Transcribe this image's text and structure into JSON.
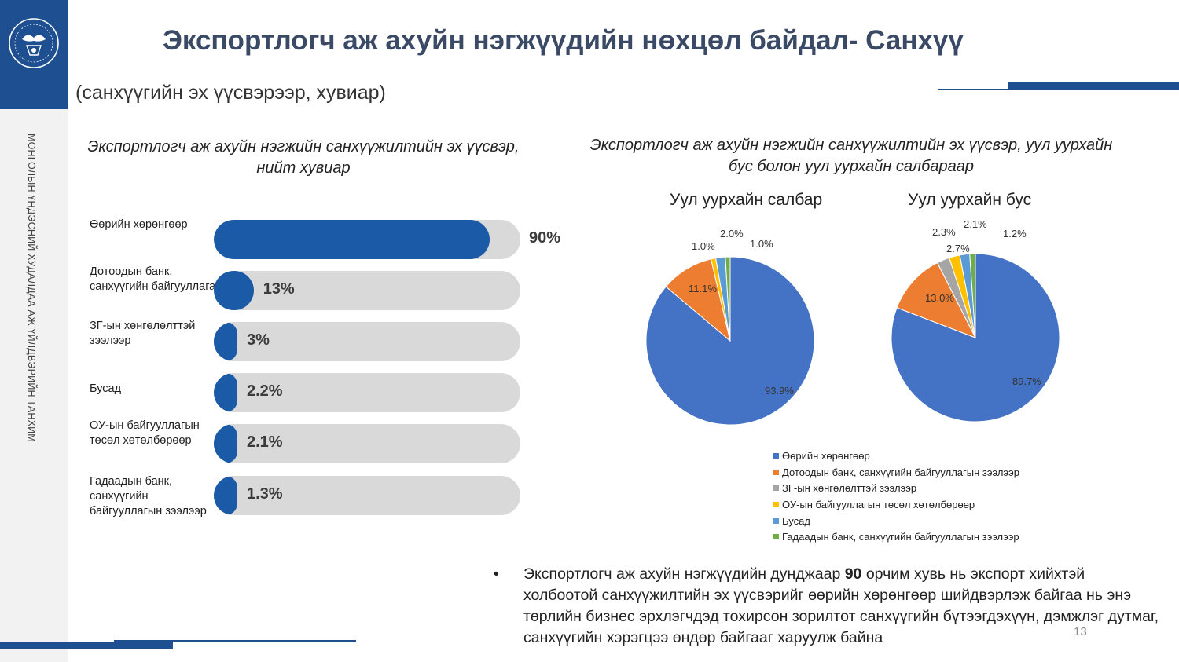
{
  "header": {
    "title": "Экспортлогч аж ахуйн нэгжүүдийн нөхцөл байдал- Санхүү",
    "subtitle": "(санхүүгийн эх үүсвэрээр, хувиар)",
    "side_label": "МОНГОЛЫН ҮНДЭСНИЙ ХУДАЛДАА АЖ ҮЙЛДВЭРИЙН ТАНХИМ"
  },
  "colors": {
    "brand": "#1d4f91",
    "bar_fill": "#1a5aa6",
    "bar_track": "#d9d9d9",
    "pie": [
      "#4472c4",
      "#ed7d31",
      "#a5a5a5",
      "#ffc000",
      "#5b9bd5",
      "#70ad47"
    ]
  },
  "chart_data": [
    {
      "type": "bar",
      "title": "Экспортлогч аж ахуйн нэгжийн санхүүжилтийн эх үүсвэр, нийт хувиар",
      "categories": [
        "Өөрийн хөрөнгөөр",
        "Дотоодын банк, санхүүгийн байгууллага",
        "ЗГ-ын хөнгөлөлттэй зээлээр",
        "Бусад",
        "ОУ-ын байгууллагын төсөл хөтөлбөрөөр",
        "Гадаадын банк, санхүүгийн байгууллагын зээлээр"
      ],
      "values": [
        90,
        13,
        3,
        2.2,
        2.1,
        1.3
      ],
      "labels": [
        "90%",
        "13%",
        "3%",
        "2.2%",
        "2.1%",
        "1.3%"
      ],
      "ylim": [
        0,
        100
      ]
    },
    {
      "type": "pie",
      "title": "Экспортлогч аж ахуйн нэгжийн санхүүжилтийн эх үүсвэр, уул уурхайн бус болон уул уурхайн салбараар",
      "charts": [
        {
          "name": "Уул уурхайн салбар",
          "values": [
            93.9,
            11.1,
            0,
            1.0,
            2.0,
            1.0
          ],
          "labels": [
            "93.9%",
            "11.1%",
            "",
            "1.0%",
            "2.0%",
            "1.0%"
          ]
        },
        {
          "name": "Уул уурхайн бус",
          "values": [
            89.7,
            13.0,
            2.7,
            2.3,
            2.1,
            1.2
          ],
          "labels": [
            "89.7%",
            "13.0%",
            "2.7%",
            "2.3%",
            "2.1%",
            "1.2%"
          ]
        }
      ],
      "legend": [
        "Өөрийн хөрөнгөөр",
        "Дотоодын банк, санхүүгийн байгууллагын зээлээр",
        "ЗГ-ын хөнгөлөлттэй зээлээр",
        "ОУ-ын байгууллагын төсөл хөтөлбөрөөр",
        "Бусад",
        "Гадаадын банк, санхүүгийн байгууллагын зээлээр"
      ],
      "legend_position": "bottom"
    }
  ],
  "note": {
    "bullet": "•",
    "text_before": "Экспортлогч аж ахуйн нэгжүүдийн дунджаар ",
    "bold": "90",
    "text_after": " орчим хувь нь экспорт хийхтэй холбоотой санхүүжилтийн эх үүсвэрийг өөрийн хөрөнгөөр шийдвэрлэж байгаа нь энэ төрлийн бизнес эрхлэгчдэд тохирсон зорилтот санхүүгийн бүтээгдэхүүн, дэмжлэг дутмаг, санхүүгийн хэрэгцээ өндөр байгааг харуулж байна"
  },
  "page_number": "13"
}
